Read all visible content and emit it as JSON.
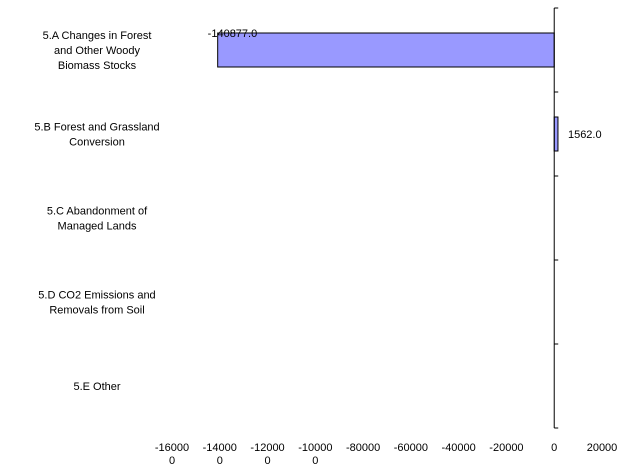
{
  "chart_data": {
    "type": "bar",
    "orientation": "horizontal",
    "categories": [
      "5.A Changes in Forest and Other Woody Biomass Stocks",
      "5.B Forest and Grassland Conversion",
      "5.C Abandonment of Managed Lands",
      "5.D CO2 Emissions and Removals from Soil",
      "5.E Other"
    ],
    "category_label_lines": [
      [
        "5.A Changes in Forest",
        "and Other Woody",
        "Biomass Stocks"
      ],
      [
        "5.B Forest and Grassland",
        "Conversion"
      ],
      [
        "5.C Abandonment of",
        "Managed Lands"
      ],
      [
        "5.D CO2 Emissions and",
        "Removals from Soil"
      ],
      [
        "5.E Other"
      ]
    ],
    "values": [
      -140877.0,
      1562.0,
      null,
      null,
      null
    ],
    "data_labels": [
      "-140877.0",
      "1562.0",
      "",
      "",
      ""
    ],
    "xlim": [
      -160000,
      20000
    ],
    "x_ticks": [
      -160000,
      -140000,
      -120000,
      -100000,
      -80000,
      -60000,
      -40000,
      -20000,
      0,
      20000
    ],
    "x_tick_lines": [
      [
        "-16000",
        "0"
      ],
      [
        "-14000",
        "0"
      ],
      [
        "-12000",
        "0"
      ],
      [
        "-10000",
        "0"
      ],
      [
        "-80000"
      ],
      [
        "-60000"
      ],
      [
        "-40000"
      ],
      [
        "-20000"
      ],
      [
        "0"
      ],
      [
        "20000"
      ]
    ],
    "bar_color": "#9999ff",
    "bar_edge_color": "#000000",
    "grid": false,
    "legend": "none",
    "title": "",
    "xlabel": "",
    "ylabel": ""
  }
}
